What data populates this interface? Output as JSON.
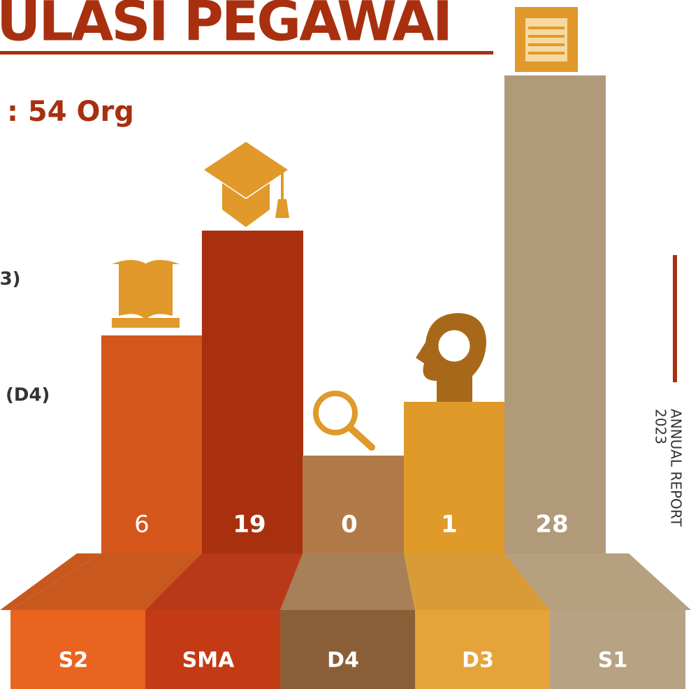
{
  "header": {
    "title": "ULASI PEGAWAI",
    "total": ": 54 Org"
  },
  "side_labels": [
    "D3)",
    "(D4)"
  ],
  "bars": [
    {
      "category": "S2",
      "value": "6"
    },
    {
      "category": "SMA",
      "value": "19"
    },
    {
      "category": "D4",
      "value": "0"
    },
    {
      "category": "D3",
      "value": "1"
    },
    {
      "category": "S1",
      "value": "28"
    }
  ],
  "report": {
    "label": "ANNUAL REPORT",
    "year": "2023"
  }
}
